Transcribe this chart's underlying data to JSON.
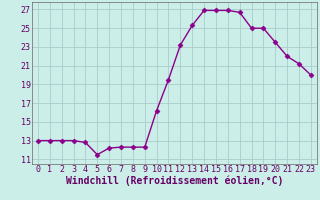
{
  "x": [
    0,
    1,
    2,
    3,
    4,
    5,
    6,
    7,
    8,
    9,
    10,
    11,
    12,
    13,
    14,
    15,
    16,
    17,
    18,
    19,
    20,
    21,
    22,
    23
  ],
  "y": [
    13.0,
    13.0,
    13.0,
    13.0,
    12.8,
    11.5,
    12.2,
    12.3,
    12.3,
    12.3,
    16.2,
    19.5,
    23.2,
    25.3,
    26.9,
    26.9,
    26.9,
    26.7,
    25.0,
    25.0,
    23.5,
    22.0,
    21.2,
    20.0
  ],
  "line_color": "#8B008B",
  "marker": "D",
  "marker_size": 2.5,
  "bg_color": "#cceee8",
  "grid_color": "#aacccc",
  "xlabel": "Windchill (Refroidissement éolien,°C)",
  "ylim": [
    10.5,
    27.8
  ],
  "xlim": [
    -0.5,
    23.5
  ],
  "yticks": [
    11,
    13,
    15,
    17,
    19,
    21,
    23,
    25,
    27
  ],
  "xticks": [
    0,
    1,
    2,
    3,
    4,
    5,
    6,
    7,
    8,
    9,
    10,
    11,
    12,
    13,
    14,
    15,
    16,
    17,
    18,
    19,
    20,
    21,
    22,
    23
  ],
  "tick_fontsize": 6.0,
  "xlabel_fontsize": 7.0,
  "line_width": 1.0
}
